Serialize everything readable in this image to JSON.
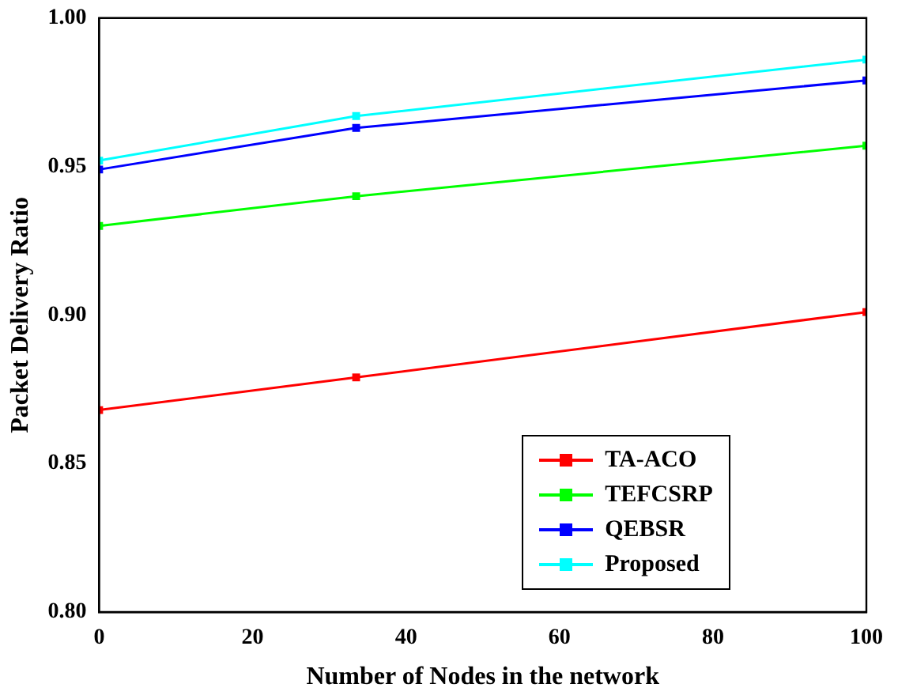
{
  "chart_data": {
    "type": "line",
    "xlabel": "Number of Nodes in the network",
    "ylabel": "Packet Delivery Ratio",
    "x": [
      0,
      33.5,
      100
    ],
    "series": [
      {
        "name": "TA-ACO",
        "color": "#ff0000",
        "values": [
          0.868,
          0.879,
          0.901
        ]
      },
      {
        "name": "TEFCSRP",
        "color": "#00ff00",
        "values": [
          0.93,
          0.94,
          0.957
        ]
      },
      {
        "name": "QEBSR",
        "color": "#0000ff",
        "values": [
          0.949,
          0.963,
          0.979
        ]
      },
      {
        "name": "Proposed",
        "color": "#00ffff",
        "values": [
          0.952,
          0.967,
          0.986
        ]
      }
    ],
    "xlim": [
      0,
      100
    ],
    "xticks": [
      0,
      20,
      40,
      60,
      80,
      100
    ],
    "ylim": [
      0.8,
      1.0
    ],
    "yticks": [
      {
        "value": 0.8,
        "label": "0.80"
      },
      {
        "value": 0.85,
        "label": "0.85"
      },
      {
        "value": 0.9,
        "label": "0.90"
      },
      {
        "value": 0.95,
        "label": "0.95"
      },
      {
        "value": 1.0,
        "label": "1.00"
      }
    ],
    "grid": false,
    "legend": "bottom right",
    "marker": "square",
    "line_style": "solid"
  }
}
